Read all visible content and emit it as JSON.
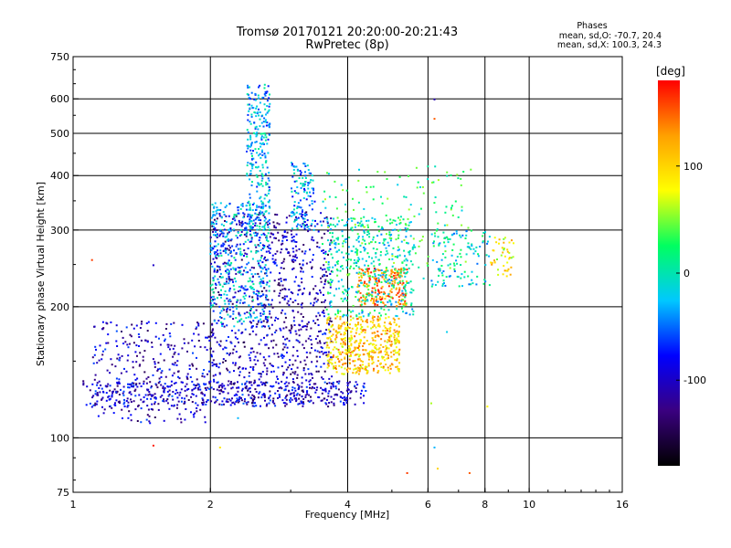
{
  "chart_data": {
    "type": "scatter",
    "title": "Tromsø 20170121 20:20:00-20:21:43",
    "subtitle": "RwPretec (8p)",
    "xlabel": "Frequency [MHz]",
    "ylabel": "Stationary phase Virtual Height [km]",
    "x_scale": "log",
    "y_scale": "log",
    "xlim": [
      1,
      16
    ],
    "ylim": [
      75,
      750
    ],
    "grid": true,
    "x_ticks": [
      {
        "value": 1,
        "label": "1"
      },
      {
        "value": 2,
        "label": "2"
      },
      {
        "value": 4,
        "label": "4"
      },
      {
        "value": 6,
        "label": "6"
      },
      {
        "value": 8,
        "label": "8"
      },
      {
        "value": 10,
        "label": "10"
      },
      {
        "value": 16,
        "label": "16"
      }
    ],
    "y_ticks": [
      {
        "value": 75,
        "label": "75"
      },
      {
        "value": 100,
        "label": "100"
      },
      {
        "value": 200,
        "label": "200"
      },
      {
        "value": 300,
        "label": "300"
      },
      {
        "value": 400,
        "label": "400"
      },
      {
        "value": 500,
        "label": "500"
      },
      {
        "value": 600,
        "label": "600"
      },
      {
        "value": 750,
        "label": "750"
      }
    ],
    "x_gridlines": [
      2,
      4,
      6,
      8,
      10
    ],
    "y_gridlines": [
      100,
      200,
      300,
      400,
      500,
      600
    ],
    "phase_stats": {
      "heading": "Phases",
      "o_line": "mean, sd,O: -70.7, 20.4",
      "x_line": "mean, sd,X: 100.3, 24.3"
    },
    "colorbar": {
      "label": "[deg]",
      "range": [
        -180,
        180
      ],
      "ticks": [
        {
          "value": 100,
          "label": "100"
        },
        {
          "value": 0,
          "label": "0"
        },
        {
          "value": -100,
          "label": "-100"
        }
      ],
      "colors": [
        "#000000",
        "#3a0080",
        "#0000ff",
        "#00c8ff",
        "#00ff60",
        "#ffff00",
        "#ffa000",
        "#ff0000"
      ]
    },
    "point_marker": "small dots colored by phase",
    "clusters": [
      {
        "name": "O-trace band",
        "x": [
          1.05,
          4.4
        ],
        "y": [
          118,
          135
        ],
        "phase": -95,
        "count": 420
      },
      {
        "name": "low-frequency rise",
        "x": [
          1.1,
          2.0
        ],
        "y": [
          108,
          185
        ],
        "phase": -100,
        "count": 320
      },
      {
        "name": "F-layer cloud",
        "x": [
          2.0,
          3.7
        ],
        "y": [
          120,
          330
        ],
        "phase": -105,
        "count": 950
      },
      {
        "name": "cyan column",
        "x": [
          2.0,
          2.7
        ],
        "y": [
          180,
          350
        ],
        "phase": -30,
        "count": 380
      },
      {
        "name": "cyan spike",
        "x": [
          2.4,
          2.7
        ],
        "y": [
          300,
          650
        ],
        "phase": -30,
        "count": 260
      },
      {
        "name": "second peak",
        "x": [
          3.0,
          3.4
        ],
        "y": [
          300,
          430
        ],
        "phase": -40,
        "count": 120
      },
      {
        "name": "X-trace yellow",
        "x": [
          3.6,
          5.2
        ],
        "y": [
          140,
          190
        ],
        "phase": 105,
        "count": 480
      },
      {
        "name": "X-trace orange",
        "x": [
          4.2,
          5.4
        ],
        "y": [
          200,
          245
        ],
        "phase": 140,
        "count": 200
      },
      {
        "name": "mixed mid cloud",
        "x": [
          3.6,
          5.6
        ],
        "y": [
          190,
          320
        ],
        "phase": 0,
        "count": 420
      },
      {
        "name": "scattered high",
        "x": [
          3.5,
          7.5
        ],
        "y": [
          230,
          420
        ],
        "phase": 20,
        "count": 180
      },
      {
        "name": "6-8 MHz cluster",
        "x": [
          6.1,
          8.2
        ],
        "y": [
          220,
          300
        ],
        "phase": -10,
        "count": 110
      },
      {
        "name": "far patch",
        "x": [
          8.2,
          9.3
        ],
        "y": [
          235,
          290
        ],
        "phase": 90,
        "count": 45
      }
    ],
    "stray_points": [
      {
        "x": 1.1,
        "y": 256,
        "phase": 160
      },
      {
        "x": 1.5,
        "y": 96,
        "phase": 170
      },
      {
        "x": 1.5,
        "y": 249,
        "phase": -100
      },
      {
        "x": 2.1,
        "y": 95,
        "phase": 90
      },
      {
        "x": 2.3,
        "y": 111,
        "phase": -30
      },
      {
        "x": 6.2,
        "y": 598,
        "phase": -110
      },
      {
        "x": 6.2,
        "y": 540,
        "phase": 150
      },
      {
        "x": 6.2,
        "y": 95,
        "phase": -30
      },
      {
        "x": 5.4,
        "y": 83,
        "phase": 160
      },
      {
        "x": 7.4,
        "y": 83,
        "phase": 150
      },
      {
        "x": 6.3,
        "y": 85,
        "phase": 100
      },
      {
        "x": 6.1,
        "y": 120,
        "phase": 60
      },
      {
        "x": 8.1,
        "y": 118,
        "phase": 80
      },
      {
        "x": 6.6,
        "y": 175,
        "phase": -20
      }
    ]
  }
}
